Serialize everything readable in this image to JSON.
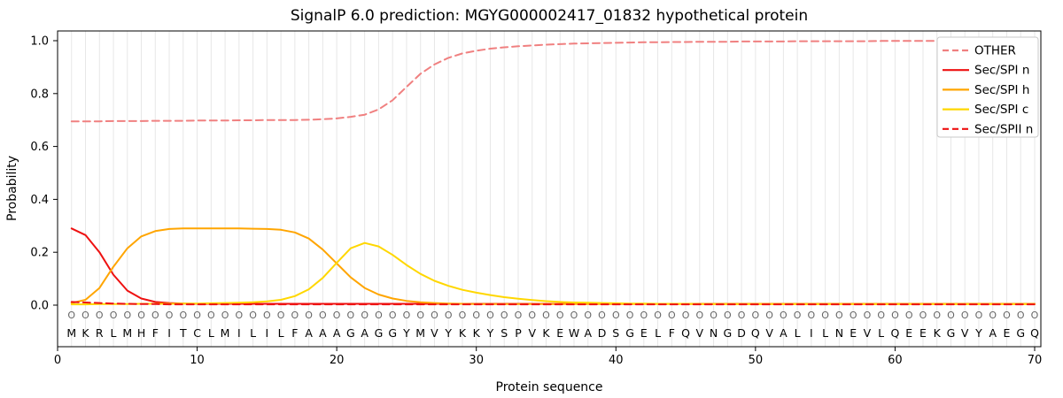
{
  "chart_data": {
    "type": "line",
    "title": "SignalP 6.0 prediction: MGYG000002417_01832 hypothetical protein",
    "xlabel": "Protein sequence",
    "ylabel": "Probability",
    "xlim": [
      0,
      70.5
    ],
    "ylim": [
      -0.157,
      1.037
    ],
    "x_ticks": [
      0,
      10,
      20,
      30,
      40,
      50,
      60,
      70
    ],
    "y_ticks": [
      0.0,
      0.2,
      0.4,
      0.6,
      0.8,
      1.0
    ],
    "grid": "vertical line at every residue position",
    "legend_position": "upper right",
    "sequence": "MKRLMHFITCLMILILFAAAGAGGYMVYKKYSPVKEWADSGELFQVNGDQVALILNEVLQEEKGVYAEGQ",
    "predicted_labels": "OOOOOOOOOOOOOOOOOOOOOOOOOOOOOOOOOOOOOOOOOOOOOOOOOOOOOOOOOOOOOOOOOOOOOO",
    "series": [
      {
        "name": "OTHER",
        "color": "#f08080",
        "dash": true,
        "values": [
          0.695,
          0.695,
          0.695,
          0.696,
          0.696,
          0.696,
          0.697,
          0.697,
          0.697,
          0.698,
          0.698,
          0.698,
          0.699,
          0.699,
          0.7,
          0.7,
          0.7,
          0.701,
          0.703,
          0.706,
          0.712,
          0.72,
          0.74,
          0.775,
          0.825,
          0.875,
          0.91,
          0.935,
          0.952,
          0.962,
          0.97,
          0.975,
          0.979,
          0.982,
          0.985,
          0.987,
          0.989,
          0.99,
          0.991,
          0.992,
          0.993,
          0.994,
          0.994,
          0.995,
          0.995,
          0.996,
          0.996,
          0.996,
          0.997,
          0.997,
          0.997,
          0.997,
          0.998,
          0.998,
          0.998,
          0.998,
          0.998,
          0.998,
          0.999,
          0.999,
          0.999,
          0.999,
          0.999,
          0.999,
          0.999,
          0.999,
          0.999,
          0.999,
          0.999,
          0.999
        ]
      },
      {
        "name": "Sec/SPI n",
        "color": "#ee1111",
        "dash": false,
        "values": [
          0.29,
          0.265,
          0.2,
          0.115,
          0.055,
          0.025,
          0.012,
          0.008,
          0.006,
          0.005,
          0.005,
          0.005,
          0.005,
          0.005,
          0.005,
          0.005,
          0.005,
          0.005,
          0.005,
          0.005,
          0.005,
          0.005,
          0.005,
          0.005,
          0.005,
          0.005,
          0.005,
          0.005,
          0.005,
          0.005,
          0.005,
          0.005,
          0.005,
          0.005,
          0.005,
          0.005,
          0.005,
          0.005,
          0.005,
          0.005,
          0.005,
          0.005,
          0.005,
          0.005,
          0.005,
          0.005,
          0.005,
          0.005,
          0.005,
          0.005,
          0.005,
          0.005,
          0.005,
          0.005,
          0.005,
          0.005,
          0.005,
          0.005,
          0.005,
          0.005,
          0.005,
          0.005,
          0.005,
          0.005,
          0.005,
          0.005,
          0.005,
          0.005,
          0.005,
          0.005
        ]
      },
      {
        "name": "Sec/SPI h",
        "color": "#ffa500",
        "dash": false,
        "values": [
          0.008,
          0.02,
          0.065,
          0.145,
          0.215,
          0.26,
          0.28,
          0.288,
          0.29,
          0.29,
          0.29,
          0.29,
          0.29,
          0.289,
          0.288,
          0.285,
          0.275,
          0.252,
          0.21,
          0.158,
          0.105,
          0.065,
          0.04,
          0.025,
          0.016,
          0.011,
          0.008,
          0.006,
          0.005,
          0.004,
          0.004,
          0.004,
          0.004,
          0.004,
          0.004,
          0.004,
          0.004,
          0.004,
          0.004,
          0.004,
          0.004,
          0.004,
          0.004,
          0.004,
          0.004,
          0.004,
          0.004,
          0.004,
          0.004,
          0.004,
          0.004,
          0.004,
          0.004,
          0.004,
          0.004,
          0.004,
          0.004,
          0.004,
          0.004,
          0.004,
          0.004,
          0.004,
          0.004,
          0.004,
          0.004,
          0.004,
          0.004,
          0.004,
          0.004,
          0.004
        ]
      },
      {
        "name": "Sec/SPI c",
        "color": "#ffd700",
        "dash": false,
        "values": [
          0.003,
          0.003,
          0.004,
          0.004,
          0.004,
          0.005,
          0.005,
          0.005,
          0.006,
          0.006,
          0.007,
          0.008,
          0.009,
          0.011,
          0.014,
          0.02,
          0.034,
          0.06,
          0.103,
          0.16,
          0.215,
          0.235,
          0.222,
          0.19,
          0.152,
          0.118,
          0.092,
          0.073,
          0.058,
          0.047,
          0.038,
          0.03,
          0.024,
          0.019,
          0.015,
          0.012,
          0.01,
          0.009,
          0.008,
          0.007,
          0.006,
          0.006,
          0.005,
          0.005,
          0.005,
          0.004,
          0.004,
          0.004,
          0.004,
          0.004,
          0.004,
          0.004,
          0.004,
          0.004,
          0.004,
          0.004,
          0.004,
          0.004,
          0.004,
          0.004,
          0.004,
          0.004,
          0.004,
          0.004,
          0.004,
          0.004,
          0.004,
          0.004,
          0.004,
          0.004
        ]
      },
      {
        "name": "Sec/SPII n",
        "color": "#ee1111",
        "dash": true,
        "values": [
          0.012,
          0.01,
          0.008,
          0.006,
          0.005,
          0.004,
          0.004,
          0.003,
          0.003,
          0.003,
          0.003,
          0.003,
          0.003,
          0.003,
          0.003,
          0.003,
          0.003,
          0.003,
          0.003,
          0.003,
          0.003,
          0.003,
          0.003,
          0.003,
          0.003,
          0.003,
          0.003,
          0.003,
          0.003,
          0.003,
          0.003,
          0.003,
          0.003,
          0.003,
          0.003,
          0.003,
          0.003,
          0.003,
          0.003,
          0.003,
          0.003,
          0.003,
          0.003,
          0.003,
          0.003,
          0.003,
          0.003,
          0.003,
          0.003,
          0.003,
          0.003,
          0.003,
          0.003,
          0.003,
          0.003,
          0.003,
          0.003,
          0.003,
          0.003,
          0.003,
          0.003,
          0.003,
          0.003,
          0.003,
          0.003,
          0.003,
          0.003,
          0.003,
          0.003,
          0.003
        ]
      }
    ]
  }
}
